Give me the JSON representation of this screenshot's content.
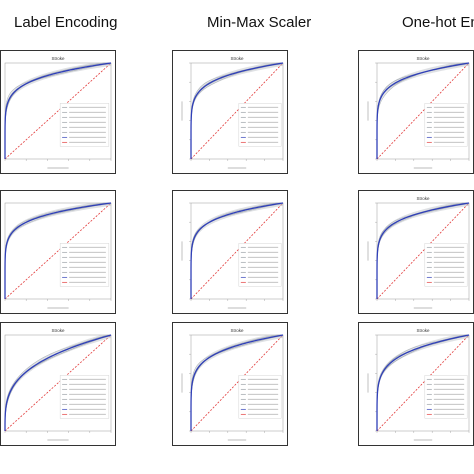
{
  "headers": [
    "Label Encoding",
    "Min-Max Scaler",
    "One-hot Enc"
  ],
  "chart_data": [
    {
      "type": "line",
      "row": 1,
      "col": 1,
      "panel_title": "Stroke",
      "kind": "A",
      "auc": [
        0.93,
        0.92,
        0.93,
        0.94,
        0.92
      ]
    },
    {
      "type": "line",
      "row": 1,
      "col": 2,
      "panel_title": "Stroke",
      "kind": "B",
      "auc": [
        0.93,
        0.94,
        0.93,
        0.92,
        0.93
      ]
    },
    {
      "type": "line",
      "row": 1,
      "col": 3,
      "panel_title": "Stroke",
      "kind": "B",
      "auc": [
        0.93,
        0.94,
        0.92,
        0.93,
        0.94
      ]
    },
    {
      "type": "line",
      "row": 2,
      "col": 1,
      "panel_title": "",
      "kind": "A",
      "auc": [
        0.94,
        0.93,
        0.94,
        0.93,
        0.94
      ]
    },
    {
      "type": "line",
      "row": 2,
      "col": 2,
      "panel_title": "",
      "kind": "A",
      "auc": [
        0.94,
        0.93,
        0.94,
        0.94,
        0.93
      ]
    },
    {
      "type": "line",
      "row": 2,
      "col": 3,
      "panel_title": "Stroke",
      "kind": "A",
      "auc": [
        0.93,
        0.94,
        0.93,
        0.94,
        0.93
      ]
    },
    {
      "type": "line",
      "row": 3,
      "col": 1,
      "panel_title": "Stroke",
      "kind": "C",
      "auc": [
        0.89,
        0.88,
        0.9,
        0.89,
        0.88
      ]
    },
    {
      "type": "line",
      "row": 3,
      "col": 2,
      "panel_title": "Stroke",
      "kind": "B",
      "auc": [
        0.92,
        0.91,
        0.92,
        0.93,
        0.91
      ]
    },
    {
      "type": "line",
      "row": 3,
      "col": 3,
      "panel_title": "Stroke",
      "kind": "B",
      "auc": [
        0.9,
        0.91,
        0.92,
        0.9,
        0.91
      ]
    }
  ]
}
